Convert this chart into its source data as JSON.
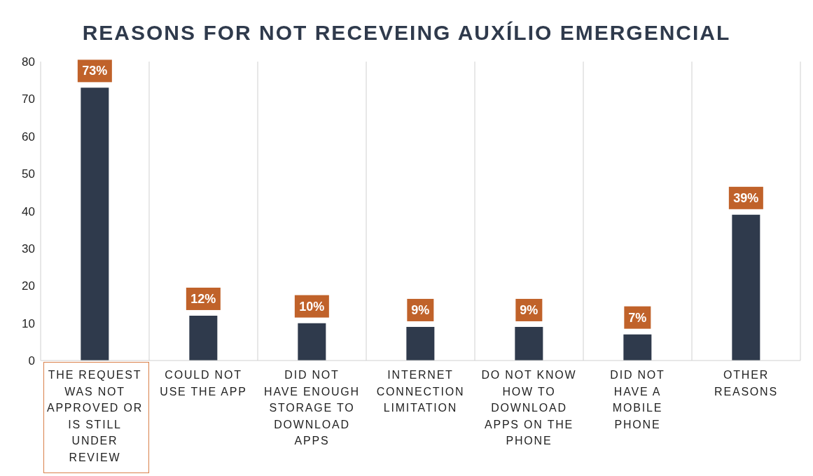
{
  "chart_data": {
    "type": "bar",
    "title": "REASONS FOR NOT RECEVEING AUXÍLIO EMERGENCIAL",
    "categories": [
      "THE REQUEST WAS NOT APPROVED OR IS STILL UNDER REVIEW",
      "COULD NOT USE THE APP",
      "DID NOT HAVE ENOUGH STORAGE TO DOWNLOAD APPS",
      "INTERNET CONNECTION LIMITATION",
      "DO NOT KNOW HOW TO DOWNLOAD APPS ON THE PHONE",
      "DID NOT HAVE A MOBILE PHONE",
      "OTHER REASONS"
    ],
    "values": [
      73,
      12,
      10,
      9,
      9,
      7,
      39
    ],
    "value_labels": [
      "73%",
      "12%",
      "10%",
      "9%",
      "9%",
      "7%",
      "39%"
    ],
    "color": "#2f3a4c",
    "ylim": [
      0,
      80
    ],
    "yticks": [
      0,
      10,
      20,
      30,
      40,
      50,
      60,
      70,
      80
    ],
    "grid": "x"
  }
}
